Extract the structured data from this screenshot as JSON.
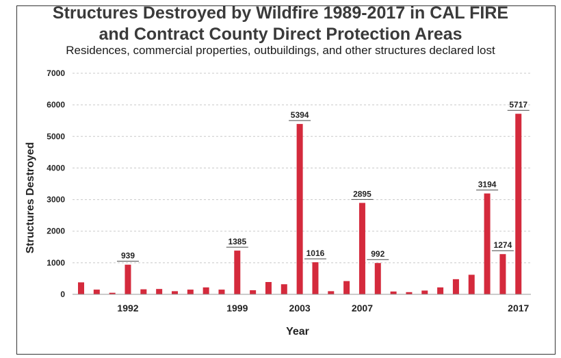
{
  "chart_data": {
    "type": "bar",
    "title_line1": "Structures Destroyed by Wildfire 1989-2017 in CAL FIRE",
    "title_line2": "and Contract County Direct Protection Areas",
    "subtitle": "Residences, commercial properties, outbuildings, and other structures declared lost",
    "xlabel": "Year",
    "ylabel": "Structures Destroyed",
    "ylim": [
      0,
      7000
    ],
    "yticks": [
      0,
      1000,
      2000,
      3000,
      4000,
      5000,
      6000,
      7000
    ],
    "grid": "horizontal dashed",
    "bar_color": "#d42a3c",
    "categories": [
      1989,
      1990,
      1991,
      1992,
      1993,
      1994,
      1995,
      1996,
      1997,
      1998,
      1999,
      2000,
      2001,
      2002,
      2003,
      2004,
      2005,
      2006,
      2007,
      2008,
      2009,
      2010,
      2011,
      2012,
      2013,
      2014,
      2015,
      2016,
      2017
    ],
    "values": [
      380,
      150,
      50,
      939,
      160,
      170,
      100,
      150,
      220,
      150,
      1385,
      130,
      390,
      320,
      5394,
      1016,
      100,
      420,
      2895,
      992,
      90,
      70,
      120,
      220,
      480,
      620,
      3194,
      1274,
      5717
    ],
    "xtick_labels": [
      {
        "year": 1992,
        "label": "1992"
      },
      {
        "year": 1999,
        "label": "1999"
      },
      {
        "year": 2003,
        "label": "2003"
      },
      {
        "year": 2007,
        "label": "2007"
      },
      {
        "year": 2017,
        "label": "2017"
      }
    ],
    "data_labels": [
      {
        "year": 1992,
        "label": "939"
      },
      {
        "year": 1999,
        "label": "1385"
      },
      {
        "year": 2003,
        "label": "5394"
      },
      {
        "year": 2004,
        "label": "1016"
      },
      {
        "year": 2007,
        "label": "2895"
      },
      {
        "year": 2008,
        "label": "992"
      },
      {
        "year": 2015,
        "label": "3194"
      },
      {
        "year": 2016,
        "label": "1274"
      },
      {
        "year": 2017,
        "label": "5717"
      }
    ]
  }
}
